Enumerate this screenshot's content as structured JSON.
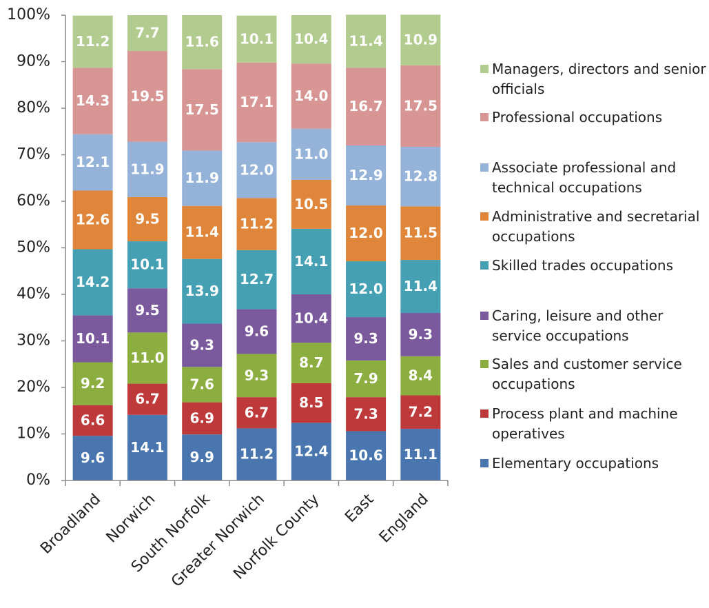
{
  "chart_data": {
    "type": "stacked_bar",
    "categories": [
      "Broadland",
      "Norwich",
      "South Norfolk",
      "Greater Norwich",
      "Norfolk County",
      "East",
      "England"
    ],
    "ylim": [
      0,
      100
    ],
    "yticks": [
      {
        "value": 0,
        "label": "0%"
      },
      {
        "value": 10,
        "label": "10%"
      },
      {
        "value": 20,
        "label": "20%"
      },
      {
        "value": 30,
        "label": "30%"
      },
      {
        "value": 40,
        "label": "40%"
      },
      {
        "value": 50,
        "label": "50%"
      },
      {
        "value": 60,
        "label": "60%"
      },
      {
        "value": 70,
        "label": "70%"
      },
      {
        "value": 80,
        "label": "80%"
      },
      {
        "value": 90,
        "label": "90%"
      },
      {
        "value": 100,
        "label": "100%"
      }
    ],
    "legend": "right",
    "series": [
      {
        "name": "Elementary occupations",
        "color": "#4a76b0",
        "values": [
          9.6,
          14.1,
          9.9,
          11.2,
          12.4,
          10.6,
          11.1
        ],
        "value_labels": [
          "9.6",
          "14.1",
          "9.9",
          "11.2",
          "12.4",
          "10.6",
          "11.1"
        ]
      },
      {
        "name": "Process plant and machine operatives",
        "color": "#be3a3a",
        "values": [
          6.6,
          6.7,
          6.9,
          6.7,
          8.5,
          7.3,
          7.2
        ],
        "value_labels": [
          "6.6",
          "6.7",
          "6.9",
          "6.7",
          "8.5",
          "7.3",
          "7.2"
        ]
      },
      {
        "name": "Sales and customer service occupations",
        "color": "#8cae40",
        "values": [
          9.2,
          11.0,
          7.6,
          9.3,
          8.7,
          7.9,
          8.4
        ],
        "value_labels": [
          "9.2",
          "11.0",
          "7.6",
          "9.3",
          "8.7",
          "7.9",
          "8.4"
        ]
      },
      {
        "name": "Caring, leisure and other service occupations",
        "color": "#7a5a9c",
        "values": [
          10.1,
          9.5,
          9.3,
          9.6,
          10.4,
          9.3,
          9.3
        ],
        "value_labels": [
          "10.1",
          "9.5",
          "9.3",
          "9.6",
          "10.4",
          "9.3",
          "9.3"
        ]
      },
      {
        "name": "Skilled trades occupations",
        "color": "#46a0b4",
        "values": [
          14.2,
          10.1,
          13.9,
          12.7,
          14.1,
          12.0,
          11.4
        ],
        "value_labels": [
          "14.2",
          "10.1",
          "13.9",
          "12.7",
          "14.1",
          "12.0",
          "11.4"
        ]
      },
      {
        "name": "Administrative and secretarial occupations",
        "color": "#e0863a",
        "values": [
          12.6,
          9.5,
          11.4,
          11.2,
          10.5,
          12.0,
          11.5
        ],
        "value_labels": [
          "12.6",
          "9.5",
          "11.4",
          "11.2",
          "10.5",
          "12.0",
          "11.5"
        ]
      },
      {
        "name": "Associate professional and technical occupations",
        "color": "#95b2d8",
        "values": [
          12.1,
          11.9,
          11.9,
          12.0,
          11.0,
          12.9,
          12.8
        ],
        "value_labels": [
          "12.1",
          "11.9",
          "11.9",
          "12.0",
          "11.0",
          "12.9",
          "12.8"
        ]
      },
      {
        "name": "Professional occupations",
        "color": "#d79593",
        "values": [
          14.3,
          19.5,
          17.5,
          17.1,
          14.0,
          16.7,
          17.5
        ],
        "value_labels": [
          "14.3",
          "19.5",
          "17.5",
          "17.1",
          "14.0",
          "16.7",
          "17.5"
        ]
      },
      {
        "name": "Managers, directors and senior officials",
        "color": "#b2cb8e",
        "values": [
          11.2,
          7.7,
          11.6,
          10.1,
          10.4,
          11.4,
          10.9
        ],
        "value_labels": [
          "11.2",
          "7.7",
          "11.6",
          "10.1",
          "10.4",
          "11.4",
          "10.9"
        ]
      }
    ]
  }
}
